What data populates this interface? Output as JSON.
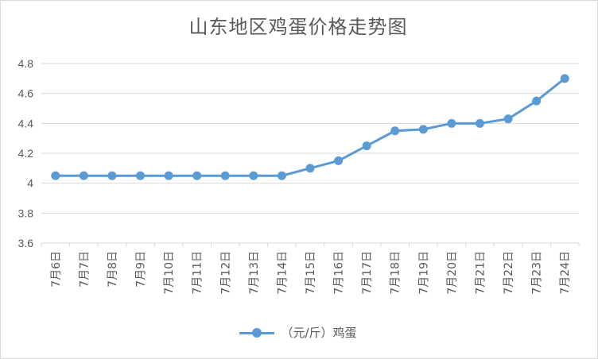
{
  "chart_data": {
    "type": "line",
    "title": "山东地区鸡蛋价格走势图",
    "categories": [
      "7月6日",
      "7月7日",
      "7月8日",
      "7月9日",
      "7月10日",
      "7月11日",
      "7月12日",
      "7月13日",
      "7月14日",
      "7月15日",
      "7月16日",
      "7月17日",
      "7月18日",
      "7月19日",
      "7月20日",
      "7月21日",
      "7月22日",
      "7月23日",
      "7月24日"
    ],
    "series": [
      {
        "name": "（元/斤）鸡蛋",
        "values": [
          4.05,
          4.05,
          4.05,
          4.05,
          4.05,
          4.05,
          4.05,
          4.05,
          4.05,
          4.1,
          4.15,
          4.25,
          4.35,
          4.36,
          4.4,
          4.4,
          4.43,
          4.55,
          4.7
        ]
      }
    ],
    "yticks": [
      "3.6",
      "3.8",
      "4",
      "4.2",
      "4.4",
      "4.6",
      "4.8"
    ],
    "ylim": [
      3.6,
      4.8
    ],
    "xlabel": "",
    "ylabel": "",
    "grid": true,
    "legend_position": "bottom",
    "series_color": "#5b9bd5",
    "grid_color": "#d9d9d9",
    "text_color": "#595959"
  }
}
